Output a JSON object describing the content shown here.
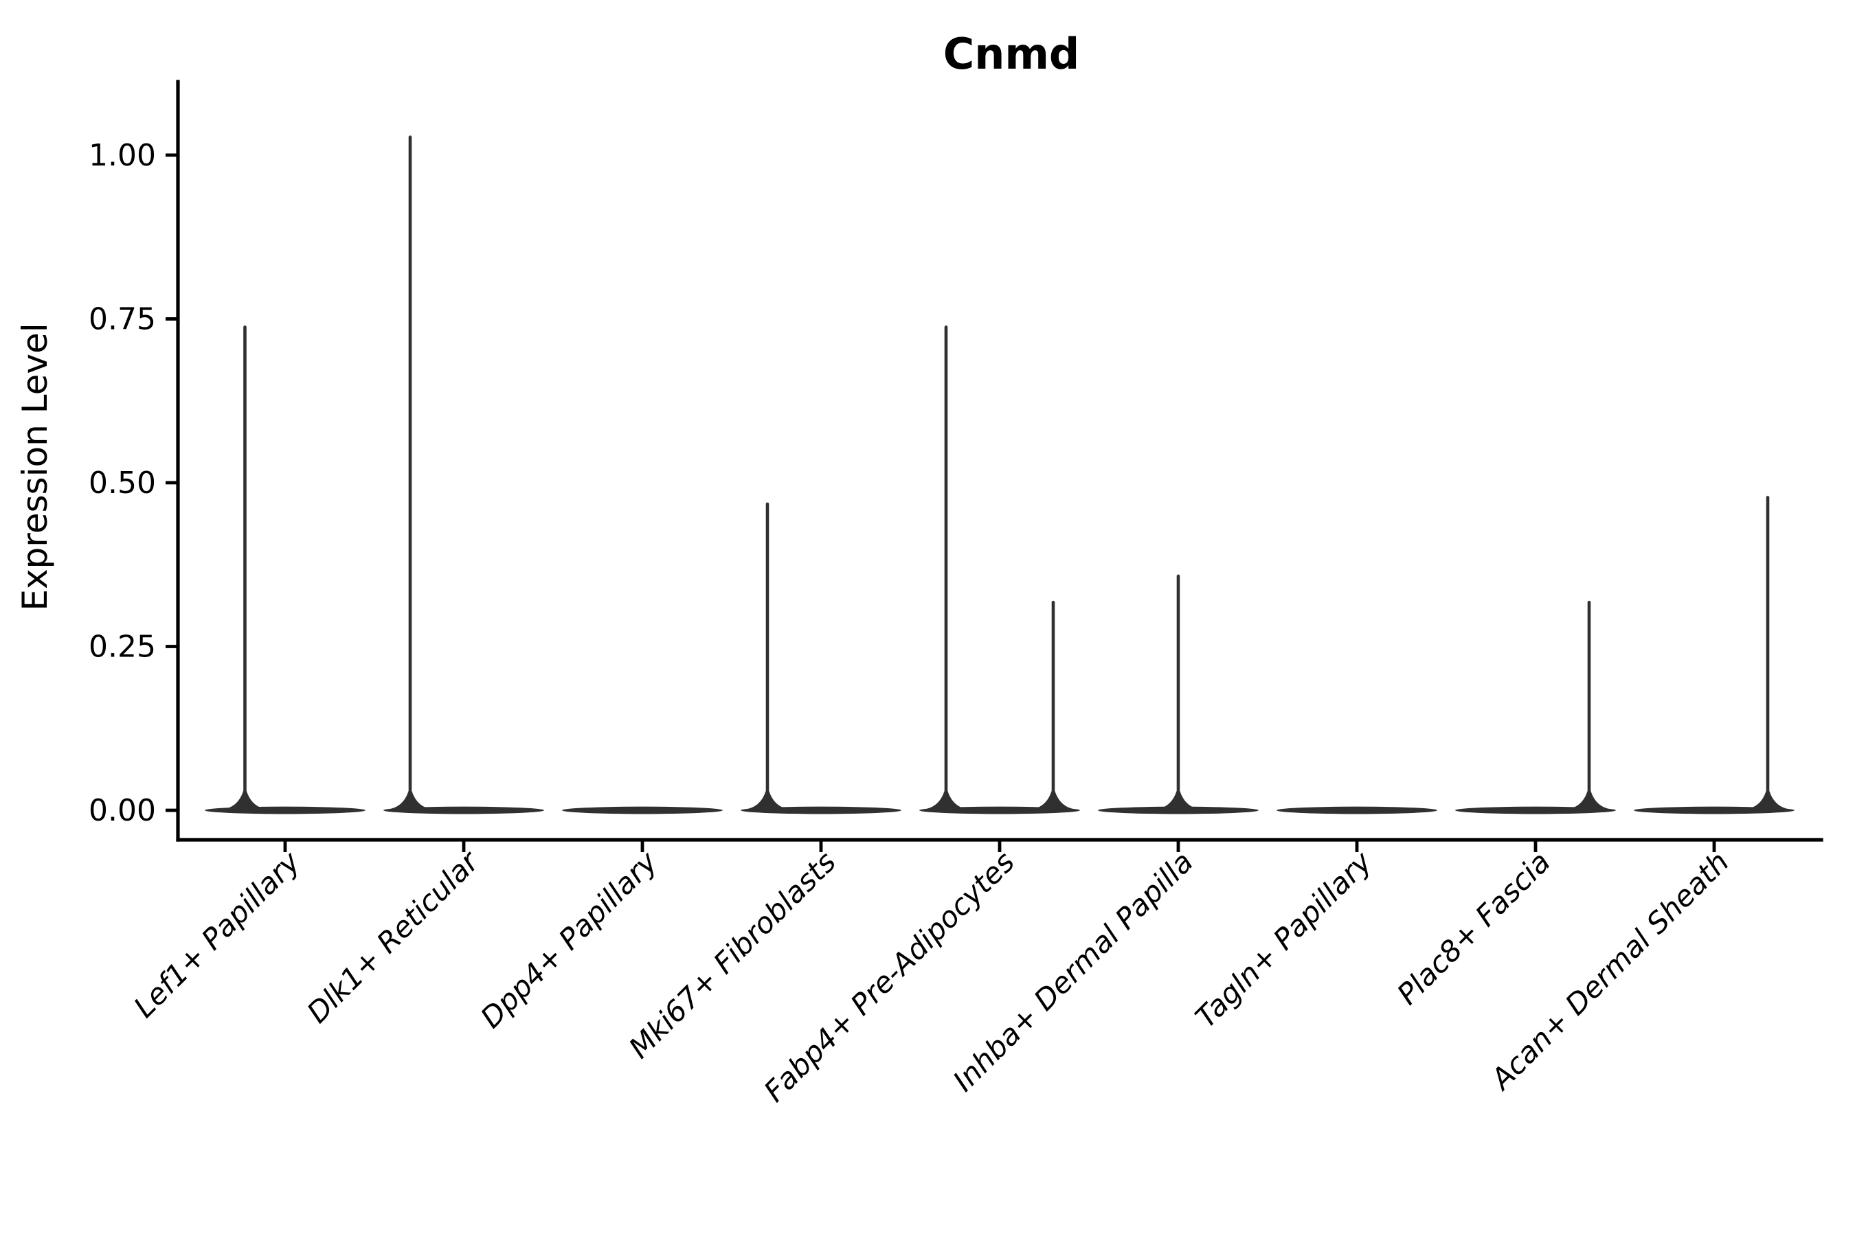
{
  "figure": {
    "title": "Cnmd"
  },
  "chart_data": {
    "type": "violin",
    "title": "Cnmd",
    "xlabel": "",
    "ylabel": "Expression Level",
    "legend": "none",
    "grid": false,
    "background": "#ffffff",
    "yticks": [
      {
        "label": "0.00",
        "value": 0.0
      },
      {
        "label": "0.25",
        "value": 0.25
      },
      {
        "label": "0.50",
        "value": 0.5
      },
      {
        "label": "0.75",
        "value": 0.75
      },
      {
        "label": "1.00",
        "value": 1.0
      }
    ],
    "ylim": [
      -0.045,
      1.112
    ],
    "x_axis": {
      "categories": [
        "Lef1+ Papillary",
        "Dlk1+ Reticular",
        "Dpp4+ Papillary",
        "Mki67+ Fibroblasts",
        "Fabp4+ Pre-Adipocytes",
        "Inhba+ Dermal Papilla",
        "Tagln+ Papillary",
        "Plac8+ Fascia",
        "Acan+ Dermal Sheath"
      ],
      "label_angle_deg": 45,
      "label_style": "italic",
      "padding_units": 0.6
    },
    "violin_width_units": 0.9,
    "groups": [
      {
        "label": "Lef1+ Papillary",
        "baseline_value": 0.0,
        "spikes": [
          {
            "offset_units": -0.225,
            "value": 0.74
          }
        ]
      },
      {
        "label": "Dlk1+ Reticular",
        "baseline_value": 0.0,
        "spikes": [
          {
            "offset_units": -0.3,
            "value": 1.03
          }
        ]
      },
      {
        "label": "Dpp4+ Papillary",
        "baseline_value": 0.0,
        "spikes": []
      },
      {
        "label": "Mki67+ Fibroblasts",
        "baseline_value": 0.0,
        "spikes": [
          {
            "offset_units": -0.3,
            "value": 0.47
          }
        ]
      },
      {
        "label": "Fabp4+ Pre-Adipocytes",
        "baseline_value": 0.0,
        "spikes": [
          {
            "offset_units": -0.3,
            "value": 0.74
          },
          {
            "offset_units": 0.3,
            "value": 0.32
          }
        ]
      },
      {
        "label": "Inhba+ Dermal Papilla",
        "baseline_value": 0.0,
        "spikes": [
          {
            "offset_units": 0.0,
            "value": 0.36
          }
        ]
      },
      {
        "label": "Tagln+ Papillary",
        "baseline_value": 0.0,
        "spikes": []
      },
      {
        "label": "Plac8+ Fascia",
        "baseline_value": 0.0,
        "spikes": [
          {
            "offset_units": 0.3,
            "value": 0.32
          }
        ]
      },
      {
        "label": "Acan+ Dermal Sheath",
        "baseline_value": 0.0,
        "spikes": [
          {
            "offset_units": 0.3,
            "value": 0.48
          }
        ]
      }
    ],
    "colors": {
      "violin_fill": "#303030",
      "axis": "#000000",
      "text": "#000000"
    }
  }
}
